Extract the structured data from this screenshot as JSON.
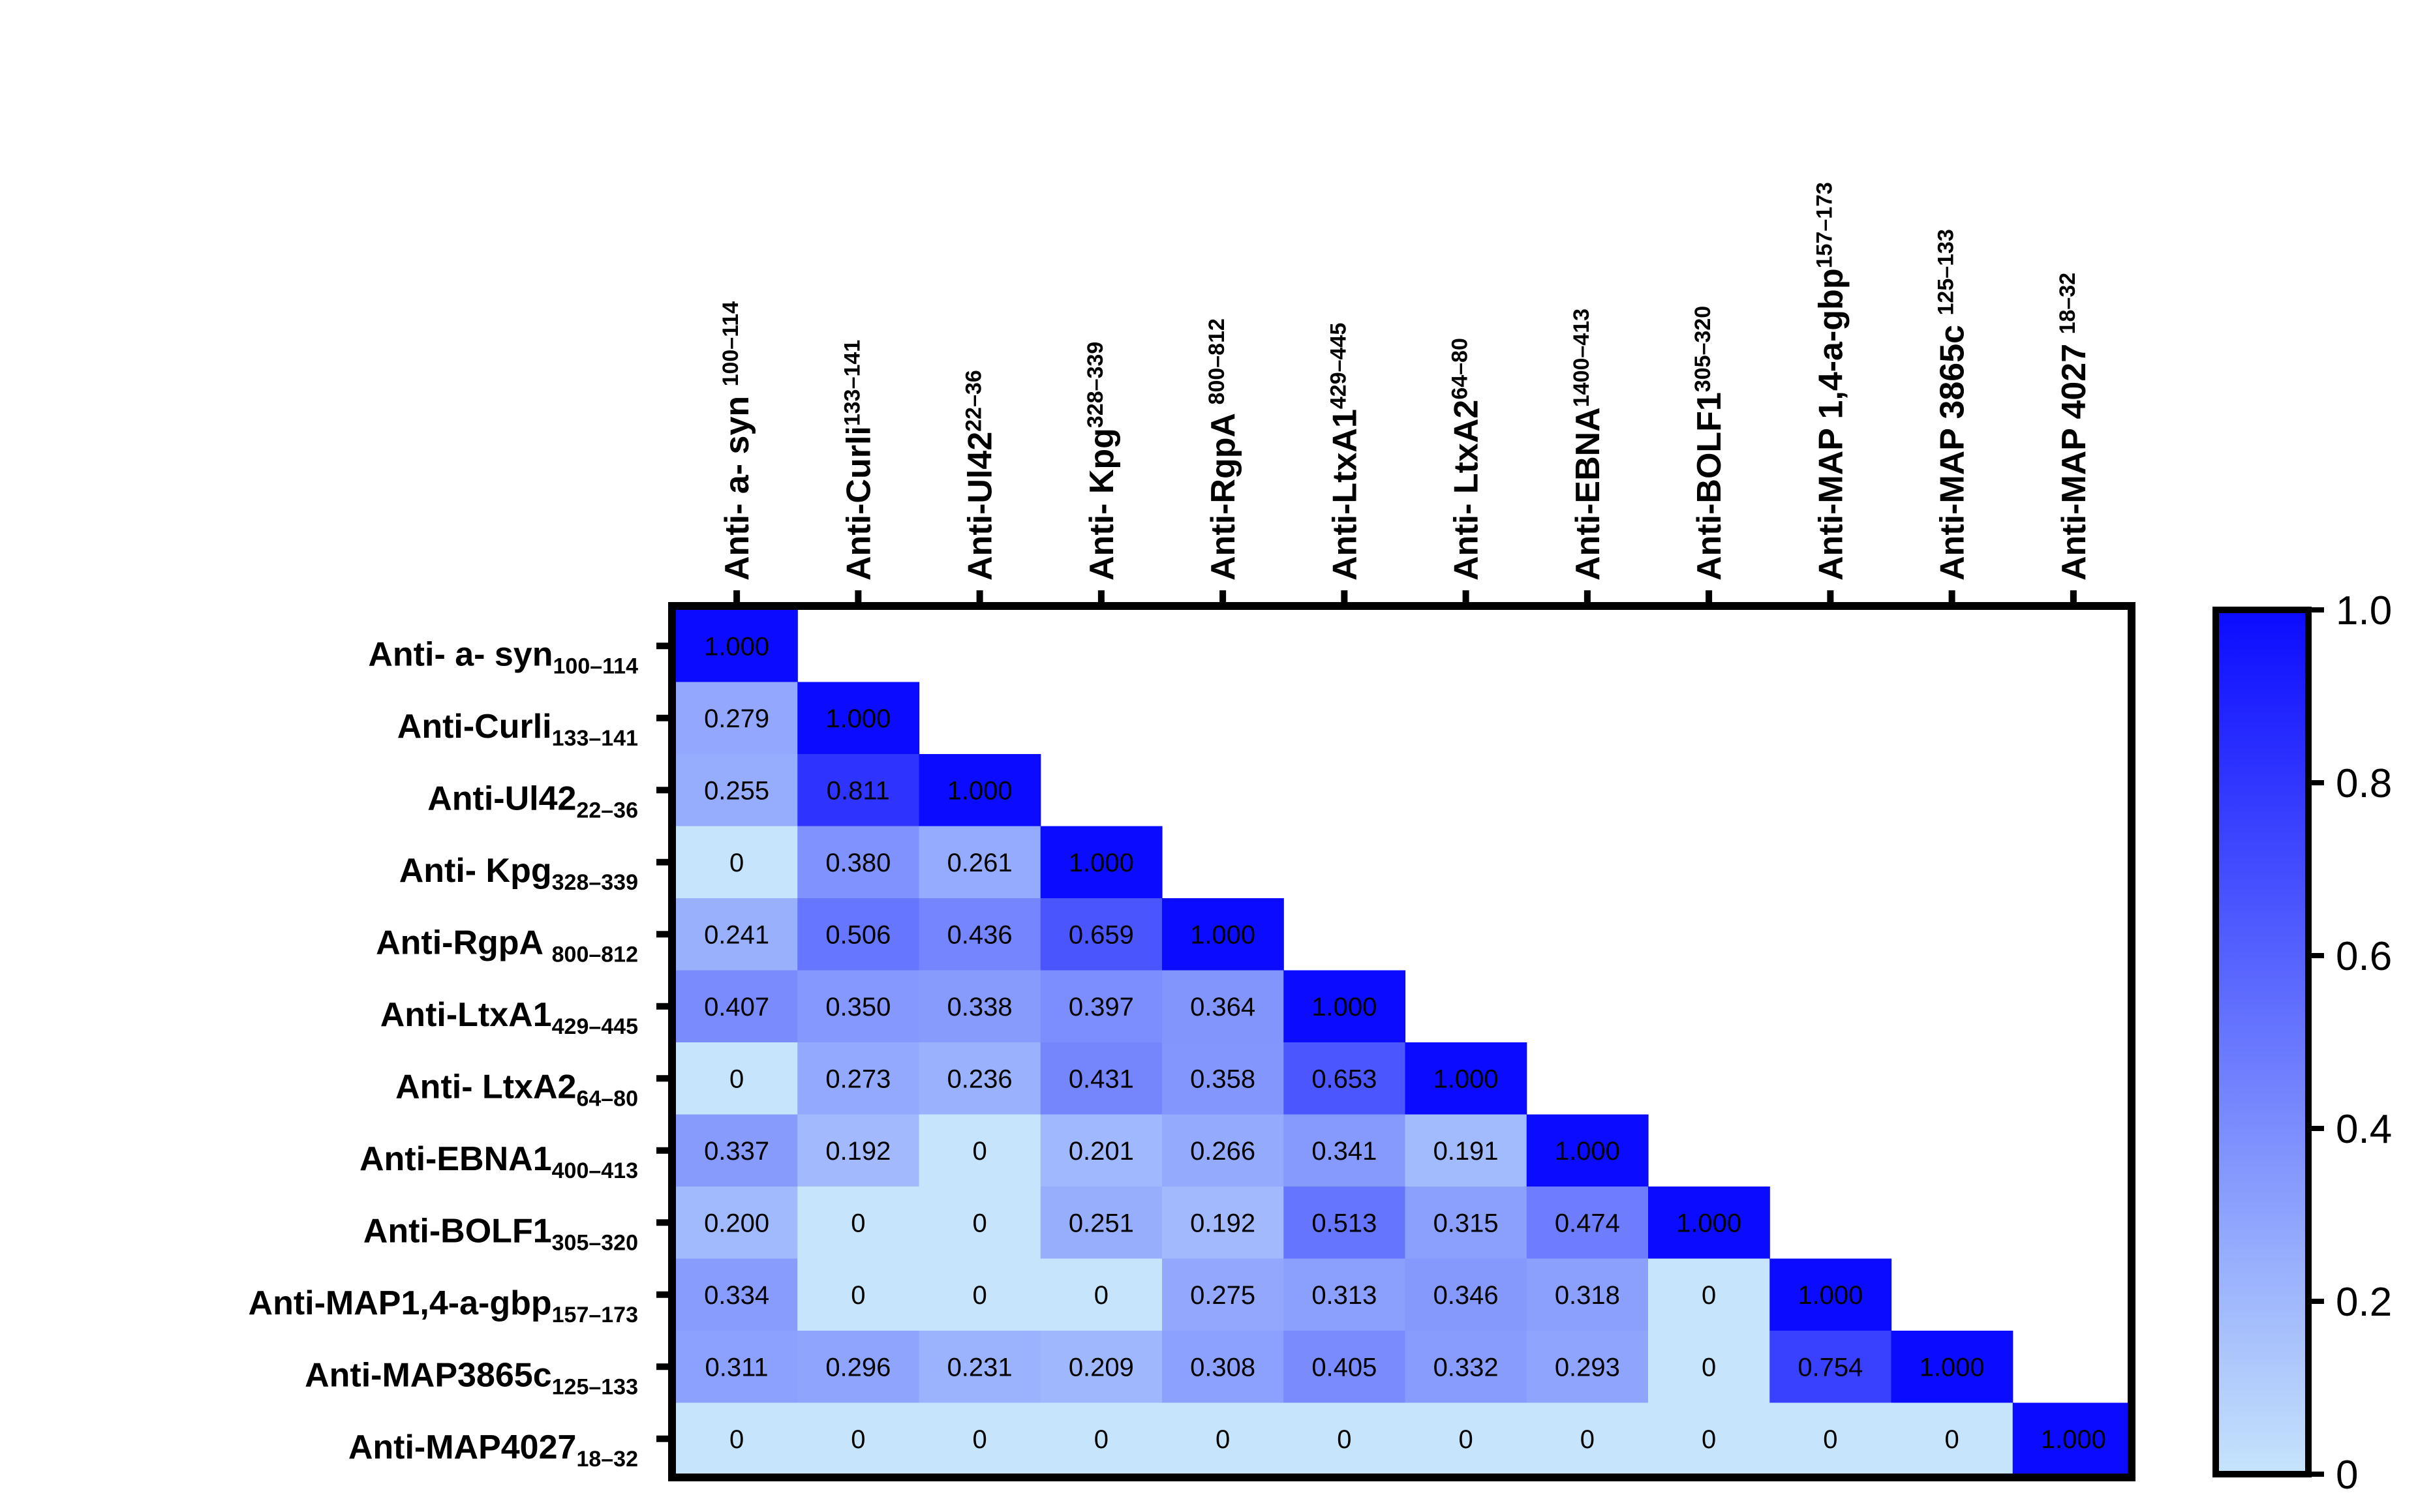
{
  "chart_data": {
    "type": "heatmap",
    "layout": "lower-triangle",
    "columns": [
      {
        "main": "Anti- a- syn ",
        "sub": "100–114"
      },
      {
        "main": "Anti-Curli",
        "sub": "133–141"
      },
      {
        "main": "Anti-Ul42",
        "sub": "22–36"
      },
      {
        "main": "Anti- Kpg",
        "sub": "328–339"
      },
      {
        "main": "Anti-RgpA ",
        "sub": "800–812"
      },
      {
        "main": "Anti-LtxA1",
        "sub": "429–445"
      },
      {
        "main": "Anti- LtxA2",
        "sub": "64–80"
      },
      {
        "main": "Anti-EBNA",
        "sub": "1400–413"
      },
      {
        "main": "Anti-BOLF1",
        "sub": "305–320"
      },
      {
        "main": "Anti-MAP 1,4-a-gbp",
        "sub": "157–173"
      },
      {
        "main": "Anti-MAP 3865c ",
        "sub": "125–133"
      },
      {
        "main": "Anti-MAP 4027 ",
        "sub": "18–32"
      }
    ],
    "rows": [
      {
        "main": "Anti- a- syn",
        "sub": "100–114"
      },
      {
        "main": "Anti-Curli",
        "sub": "133–141"
      },
      {
        "main": "Anti-Ul42",
        "sub": "22–36"
      },
      {
        "main": "Anti- Kpg",
        "sub": "328–339"
      },
      {
        "main": "Anti-RgpA ",
        "sub": "800–812"
      },
      {
        "main": "Anti-LtxA1",
        "sub": "429–445"
      },
      {
        "main": "Anti- LtxA2",
        "sub": "64–80"
      },
      {
        "main": "Anti-EBNA1",
        "sub": "400–413"
      },
      {
        "main": "Anti-BOLF1",
        "sub": "305–320"
      },
      {
        "main": "Anti-MAP1,4-a-gbp",
        "sub": "157–173"
      },
      {
        "main": "Anti-MAP3865c",
        "sub": "125–133"
      },
      {
        "main": "Anti-MAP4027",
        "sub": "18–32"
      }
    ],
    "values": [
      [
        "1.000"
      ],
      [
        "0.279",
        "1.000"
      ],
      [
        "0.255",
        "0.811",
        "1.000"
      ],
      [
        "0",
        "0.380",
        "0.261",
        "1.000"
      ],
      [
        "0.241",
        "0.506",
        "0.436",
        "0.659",
        "1.000"
      ],
      [
        "0.407",
        "0.350",
        "0.338",
        "0.397",
        "0.364",
        "1.000"
      ],
      [
        "0",
        "0.273",
        "0.236",
        "0.431",
        "0.358",
        "0.653",
        "1.000"
      ],
      [
        "0.337",
        "0.192",
        "0",
        "0.201",
        "0.266",
        "0.341",
        "0.191",
        "1.000"
      ],
      [
        "0.200",
        "0",
        "0",
        "0.251",
        "0.192",
        "0.513",
        "0.315",
        "0.474",
        "1.000"
      ],
      [
        "0.334",
        "0",
        "0",
        "0",
        "0.275",
        "0.313",
        "0.346",
        "0.318",
        "0",
        "1.000"
      ],
      [
        "0.311",
        "0.296",
        "0.231",
        "0.209",
        "0.308",
        "0.405",
        "0.332",
        "0.293",
        "0",
        "0.754",
        "1.000"
      ],
      [
        "0",
        "0",
        "0",
        "0",
        "0",
        "0",
        "0",
        "0",
        "0",
        "0",
        "0",
        "1.000"
      ]
    ],
    "colorbar": {
      "range": [
        0,
        1
      ],
      "ticks": [
        {
          "value": 0,
          "label": "0"
        },
        {
          "value": 0.2,
          "label": "0.2"
        },
        {
          "value": 0.4,
          "label": "0.4"
        },
        {
          "value": 0.6,
          "label": "0.6"
        },
        {
          "value": 0.8,
          "label": "0.8"
        },
        {
          "value": 1.0,
          "label": "1.0"
        }
      ],
      "color_low": "#c6e4fc",
      "color_high": "#0b0bff"
    }
  }
}
